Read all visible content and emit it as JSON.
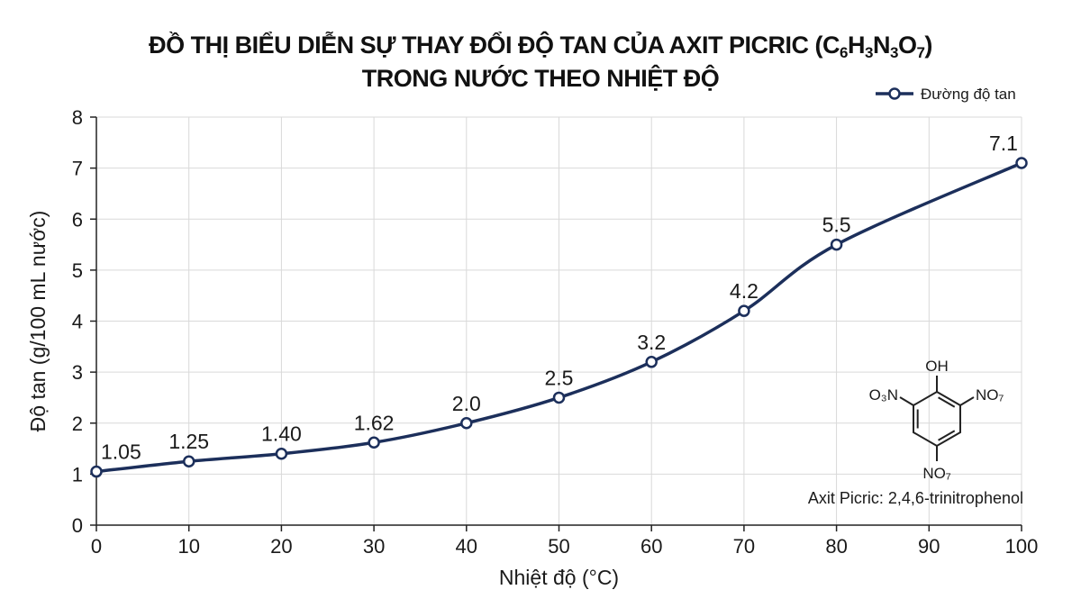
{
  "title": {
    "line1_prefix": "ĐỒ THỊ BIỂU DIỄN SỰ THAY ĐỔI ĐỘ TAN CỦA AXIT PICRIC (C",
    "formula": [
      {
        "el": "C",
        "sub": "6"
      },
      {
        "el": "H",
        "sub": "3"
      },
      {
        "el": "N",
        "sub": "3"
      },
      {
        "el": "O",
        "sub": "7"
      }
    ],
    "line1_suffix": ")",
    "line2": "TRONG NƯỚC THEO NHIỆT ĐỘ"
  },
  "colors": {
    "series": "#1c2f5b",
    "grid": "#d9d9d9",
    "axis": "#222222"
  },
  "chart_data": {
    "type": "line",
    "xlabel": "Nhiệt độ (°C)",
    "ylabel": "Độ tan (g/100 mL nước)",
    "xlim": [
      0,
      100
    ],
    "ylim": [
      0,
      8
    ],
    "xticks": [
      "0",
      "10",
      "20",
      "30",
      "40",
      "50",
      "60",
      "70",
      "80",
      "90",
      "100"
    ],
    "yticks": [
      "0",
      "1",
      "2",
      "3",
      "4",
      "5",
      "6",
      "7",
      "8"
    ],
    "grid": true,
    "legend_position": "top-right",
    "series": [
      {
        "name": "Đường độ tan",
        "x": [
          0,
          10,
          20,
          30,
          40,
          50,
          60,
          70,
          80,
          100
        ],
        "y": [
          1.05,
          1.25,
          1.4,
          1.62,
          2.0,
          2.5,
          3.2,
          4.2,
          5.5,
          7.1
        ],
        "labels": [
          "1.05",
          "1.25",
          "1.40",
          "1.62",
          "2.0",
          "2.5",
          "3.2",
          "4.2",
          "5.5",
          "7.1"
        ]
      }
    ]
  },
  "structure": {
    "oh": "OH",
    "left_group": "O₃N",
    "right_group": "NO₇",
    "bottom_group": "NO₇",
    "caption": "Axit Picric: 2,4,6-trinitrophenol"
  }
}
